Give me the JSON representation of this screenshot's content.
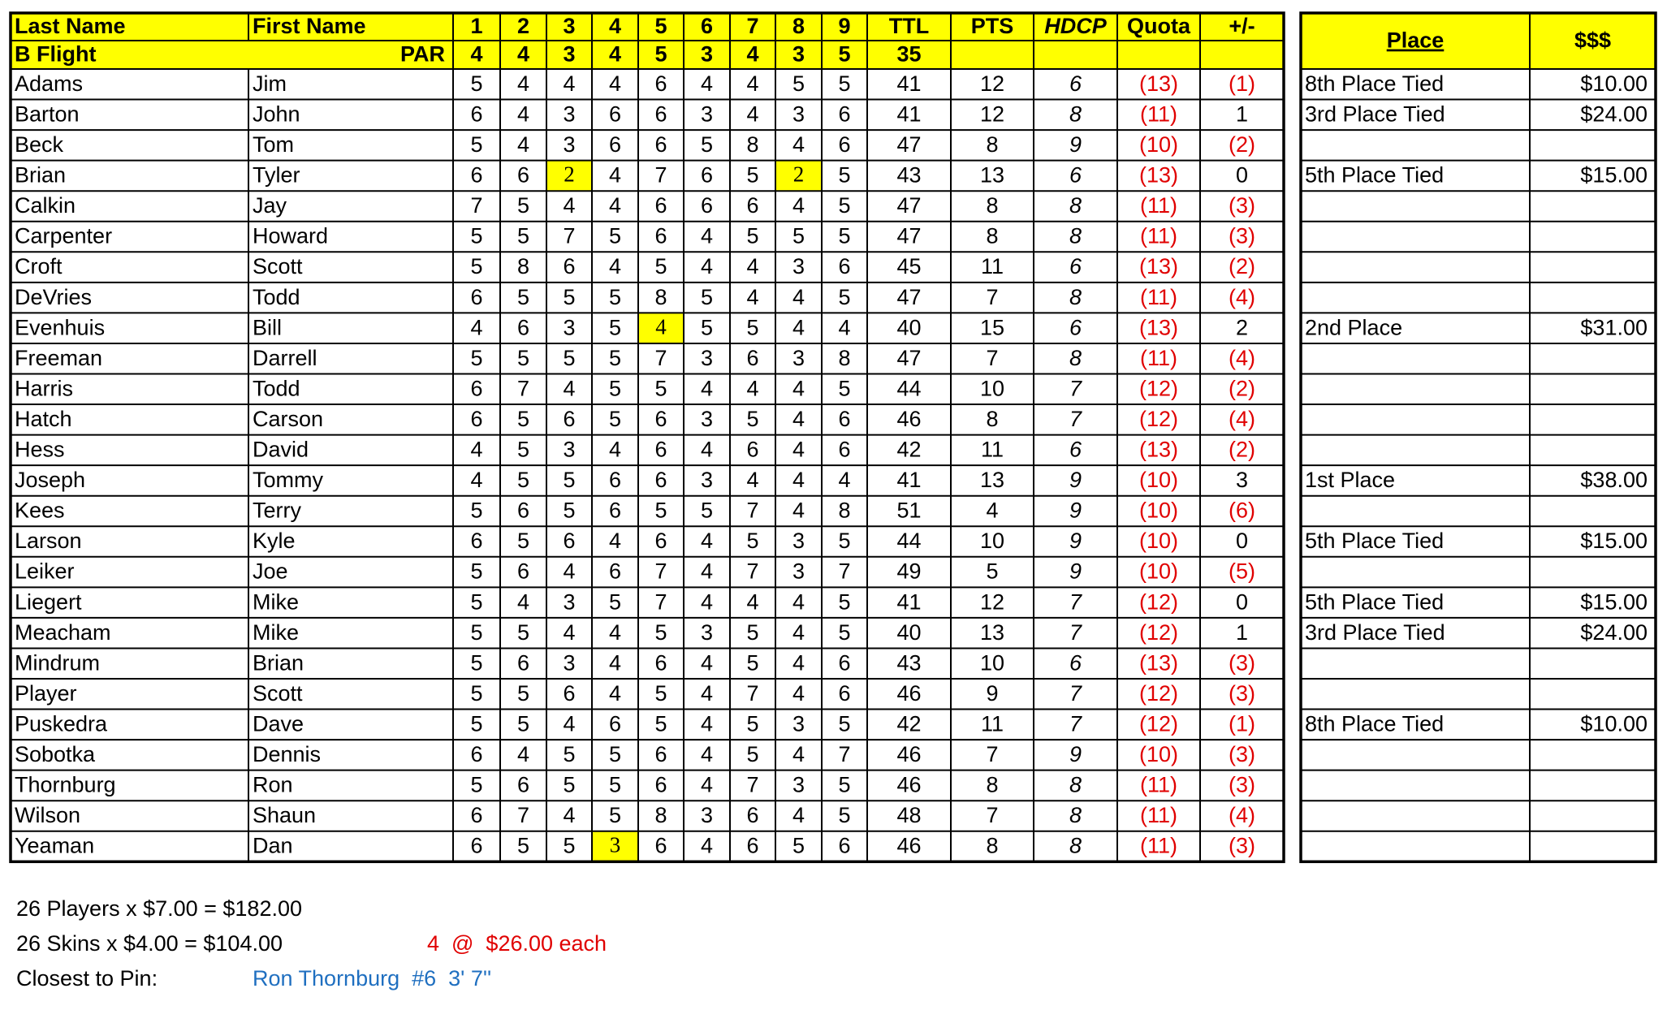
{
  "header": {
    "columns": [
      "Last Name",
      "First Name",
      "1",
      "2",
      "3",
      "4",
      "5",
      "6",
      "7",
      "8",
      "9",
      "TTL",
      "PTS",
      "HDCP",
      "Quota",
      "+/-"
    ],
    "place": "Place",
    "money": "$$$"
  },
  "par_row": {
    "label": "B Flight",
    "par_label": "PAR",
    "values": [
      4,
      4,
      3,
      4,
      5,
      3,
      4,
      3,
      5
    ],
    "total": 35
  },
  "highlight_color": "#ffff00",
  "negative_color": "#e00000",
  "rows": [
    {
      "last": "Adams",
      "first": "Jim",
      "holes": [
        5,
        4,
        4,
        4,
        6,
        4,
        4,
        5,
        5
      ],
      "ttl": 41,
      "pts": 12,
      "hdcp": 6,
      "quota": "(13)",
      "diff": "(1)",
      "place": "8th Place Tied",
      "money": "$10.00"
    },
    {
      "last": "Barton",
      "first": "John",
      "holes": [
        6,
        4,
        3,
        6,
        6,
        3,
        4,
        3,
        6
      ],
      "ttl": 41,
      "pts": 12,
      "hdcp": 8,
      "quota": "(11)",
      "diff": 1,
      "place": "3rd Place Tied",
      "money": "$24.00"
    },
    {
      "last": "Beck",
      "first": "Tom",
      "holes": [
        5,
        4,
        3,
        6,
        6,
        5,
        8,
        4,
        6
      ],
      "ttl": 47,
      "pts": 8,
      "hdcp": 9,
      "quota": "(10)",
      "diff": "(2)"
    },
    {
      "last": "Brian",
      "first": "Tyler",
      "holes": [
        6,
        6,
        2,
        4,
        7,
        6,
        5,
        2,
        5
      ],
      "ttl": 43,
      "pts": 13,
      "hdcp": 6,
      "quota": "(13)",
      "diff": 0,
      "place": "5th Place Tied",
      "money": "$15.00",
      "skins": [
        3,
        8
      ]
    },
    {
      "last": "Calkin",
      "first": "Jay",
      "holes": [
        7,
        5,
        4,
        4,
        6,
        6,
        6,
        4,
        5
      ],
      "ttl": 47,
      "pts": 8,
      "hdcp": 8,
      "quota": "(11)",
      "diff": "(3)"
    },
    {
      "last": "Carpenter",
      "first": "Howard",
      "holes": [
        5,
        5,
        7,
        5,
        6,
        4,
        5,
        5,
        5
      ],
      "ttl": 47,
      "pts": 8,
      "hdcp": 8,
      "quota": "(11)",
      "diff": "(3)"
    },
    {
      "last": "Croft",
      "first": "Scott",
      "holes": [
        5,
        8,
        6,
        4,
        5,
        4,
        4,
        3,
        6
      ],
      "ttl": 45,
      "pts": 11,
      "hdcp": 6,
      "quota": "(13)",
      "diff": "(2)"
    },
    {
      "last": "DeVries",
      "first": "Todd",
      "holes": [
        6,
        5,
        5,
        5,
        8,
        5,
        4,
        4,
        5
      ],
      "ttl": 47,
      "pts": 7,
      "hdcp": 8,
      "quota": "(11)",
      "diff": "(4)"
    },
    {
      "last": "Evenhuis",
      "first": "Bill",
      "holes": [
        4,
        6,
        3,
        5,
        4,
        5,
        5,
        4,
        4
      ],
      "ttl": 40,
      "pts": 15,
      "hdcp": 6,
      "quota": "(13)",
      "diff": 2,
      "place": "2nd Place",
      "money": "$31.00",
      "skins": [
        5
      ]
    },
    {
      "last": "Freeman",
      "first": "Darrell",
      "holes": [
        5,
        5,
        5,
        5,
        7,
        3,
        6,
        3,
        8
      ],
      "ttl": 47,
      "pts": 7,
      "hdcp": 8,
      "quota": "(11)",
      "diff": "(4)"
    },
    {
      "last": "Harris",
      "first": "Todd",
      "holes": [
        6,
        7,
        4,
        5,
        5,
        4,
        4,
        4,
        5
      ],
      "ttl": 44,
      "pts": 10,
      "hdcp": 7,
      "quota": "(12)",
      "diff": "(2)"
    },
    {
      "last": "Hatch",
      "first": "Carson",
      "holes": [
        6,
        5,
        6,
        5,
        6,
        3,
        5,
        4,
        6
      ],
      "ttl": 46,
      "pts": 8,
      "hdcp": 7,
      "quota": "(12)",
      "diff": "(4)"
    },
    {
      "last": "Hess",
      "first": "David",
      "holes": [
        4,
        5,
        3,
        4,
        6,
        4,
        6,
        4,
        6
      ],
      "ttl": 42,
      "pts": 11,
      "hdcp": 6,
      "quota": "(13)",
      "diff": "(2)"
    },
    {
      "last": "Joseph",
      "first": "Tommy",
      "holes": [
        4,
        5,
        5,
        6,
        6,
        3,
        4,
        4,
        4
      ],
      "ttl": 41,
      "pts": 13,
      "hdcp": 9,
      "quota": "(10)",
      "diff": 3,
      "place": "1st Place",
      "money": "$38.00"
    },
    {
      "last": "Kees",
      "first": "Terry",
      "holes": [
        5,
        6,
        5,
        6,
        5,
        5,
        7,
        4,
        8
      ],
      "ttl": 51,
      "pts": 4,
      "hdcp": 9,
      "quota": "(10)",
      "diff": "(6)"
    },
    {
      "last": "Larson",
      "first": "Kyle",
      "holes": [
        6,
        5,
        6,
        4,
        6,
        4,
        5,
        3,
        5
      ],
      "ttl": 44,
      "pts": 10,
      "hdcp": 9,
      "quota": "(10)",
      "diff": 0,
      "place": "5th Place Tied",
      "money": "$15.00"
    },
    {
      "last": "Leiker",
      "first": "Joe",
      "holes": [
        5,
        6,
        4,
        6,
        7,
        4,
        7,
        3,
        7
      ],
      "ttl": 49,
      "pts": 5,
      "hdcp": 9,
      "quota": "(10)",
      "diff": "(5)"
    },
    {
      "last": "Liegert",
      "first": "Mike",
      "holes": [
        5,
        4,
        3,
        5,
        7,
        4,
        4,
        4,
        5
      ],
      "ttl": 41,
      "pts": 12,
      "hdcp": 7,
      "quota": "(12)",
      "diff": 0,
      "place": "5th Place Tied",
      "money": "$15.00"
    },
    {
      "last": "Meacham",
      "first": "Mike",
      "holes": [
        5,
        5,
        4,
        4,
        5,
        3,
        5,
        4,
        5
      ],
      "ttl": 40,
      "pts": 13,
      "hdcp": 7,
      "quota": "(12)",
      "diff": 1,
      "place": "3rd Place Tied",
      "money": "$24.00"
    },
    {
      "last": "Mindrum",
      "first": "Brian",
      "holes": [
        5,
        6,
        3,
        4,
        6,
        4,
        5,
        4,
        6
      ],
      "ttl": 43,
      "pts": 10,
      "hdcp": 6,
      "quota": "(13)",
      "diff": "(3)"
    },
    {
      "last": "Player",
      "first": "Scott",
      "holes": [
        5,
        5,
        6,
        4,
        5,
        4,
        7,
        4,
        6
      ],
      "ttl": 46,
      "pts": 9,
      "hdcp": 7,
      "quota": "(12)",
      "diff": "(3)"
    },
    {
      "last": "Puskedra",
      "first": "Dave",
      "holes": [
        5,
        5,
        4,
        6,
        5,
        4,
        5,
        3,
        5
      ],
      "ttl": 42,
      "pts": 11,
      "hdcp": 7,
      "quota": "(12)",
      "diff": "(1)",
      "place": "8th Place Tied",
      "money": "$10.00"
    },
    {
      "last": "Sobotka",
      "first": "Dennis",
      "holes": [
        6,
        4,
        5,
        5,
        6,
        4,
        5,
        4,
        7
      ],
      "ttl": 46,
      "pts": 7,
      "hdcp": 9,
      "quota": "(10)",
      "diff": "(3)"
    },
    {
      "last": "Thornburg",
      "first": "Ron",
      "holes": [
        5,
        6,
        5,
        5,
        6,
        4,
        7,
        3,
        5
      ],
      "ttl": 46,
      "pts": 8,
      "hdcp": 8,
      "quota": "(11)",
      "diff": "(3)"
    },
    {
      "last": "Wilson",
      "first": "Shaun",
      "holes": [
        6,
        7,
        4,
        5,
        8,
        3,
        6,
        4,
        5
      ],
      "ttl": 48,
      "pts": 7,
      "hdcp": 8,
      "quota": "(11)",
      "diff": "(4)"
    },
    {
      "last": "Yeaman",
      "first": "Dan",
      "holes": [
        6,
        5,
        5,
        3,
        6,
        4,
        6,
        5,
        6
      ],
      "ttl": 46,
      "pts": 8,
      "hdcp": 8,
      "quota": "(11)",
      "diff": "(3)",
      "skins": [
        4
      ]
    }
  ],
  "footer": {
    "players": "26 Players x $7.00 = $182.00",
    "skins": "26 Skins x $4.00 = $104.00",
    "skins_split": "4  @  $26.00 each",
    "pin_label": "Closest to Pin:",
    "pin_winner": "Ron Thornburg  #6  3' 7''"
  }
}
